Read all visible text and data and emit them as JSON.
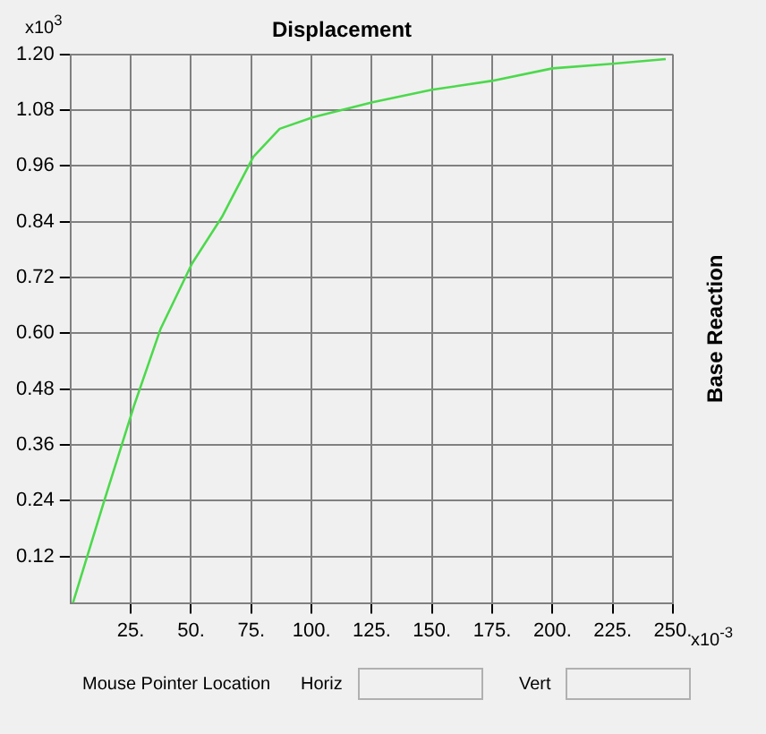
{
  "chart_data": {
    "type": "line",
    "title": "Displacement",
    "ylabel": "Base Reaction",
    "annotations": [
      "x10$^{3}$",
      "x10$^{-3}$",
      "Mouse Pointer Location",
      "Horiz",
      "Vert"
    ],
    "x": [
      1,
      14,
      26.4,
      37.4,
      50.4,
      62.8,
      75.9,
      86.8,
      100.6,
      125.3,
      150,
      174.7,
      200,
      224.8,
      247
    ],
    "series": [
      {
        "color": "#4cd94c",
        "values": [
          0.02,
          0.24,
          0.445,
          0.61,
          0.75,
          0.85,
          0.98,
          1.04,
          1.065,
          1.097,
          1.124,
          1.143,
          1.17,
          1.18,
          1.19
        ]
      }
    ],
    "xlim": [
      0,
      250
    ],
    "xticks": [
      {
        "value": 25,
        "label": "25."
      },
      {
        "value": 50,
        "label": "50."
      },
      {
        "value": 75,
        "label": "75."
      },
      {
        "value": 100,
        "label": "100."
      },
      {
        "value": 125,
        "label": "125."
      },
      {
        "value": 150,
        "label": "150."
      },
      {
        "value": 175,
        "label": "175."
      },
      {
        "value": 200,
        "label": "200."
      },
      {
        "value": 225,
        "label": "225."
      },
      {
        "value": 250,
        "label": "250."
      }
    ],
    "ylim": [
      0.02,
      1.2
    ],
    "yticks": [
      {
        "value": 0.12,
        "label": "0.12"
      },
      {
        "value": 0.24,
        "label": "0.24"
      },
      {
        "value": 0.36,
        "label": "0.36"
      },
      {
        "value": 0.48,
        "label": "0.48"
      },
      {
        "value": 0.6,
        "label": "0.60"
      },
      {
        "value": 0.72,
        "label": "0.72"
      },
      {
        "value": 0.84,
        "label": "0.84"
      },
      {
        "value": 0.96,
        "label": "0.96"
      },
      {
        "value": 1.08,
        "label": "1.08"
      },
      {
        "value": 1.2,
        "label": "1.20"
      }
    ],
    "grid": true,
    "legend": false,
    "marker": "none",
    "line_style": "solid"
  }
}
